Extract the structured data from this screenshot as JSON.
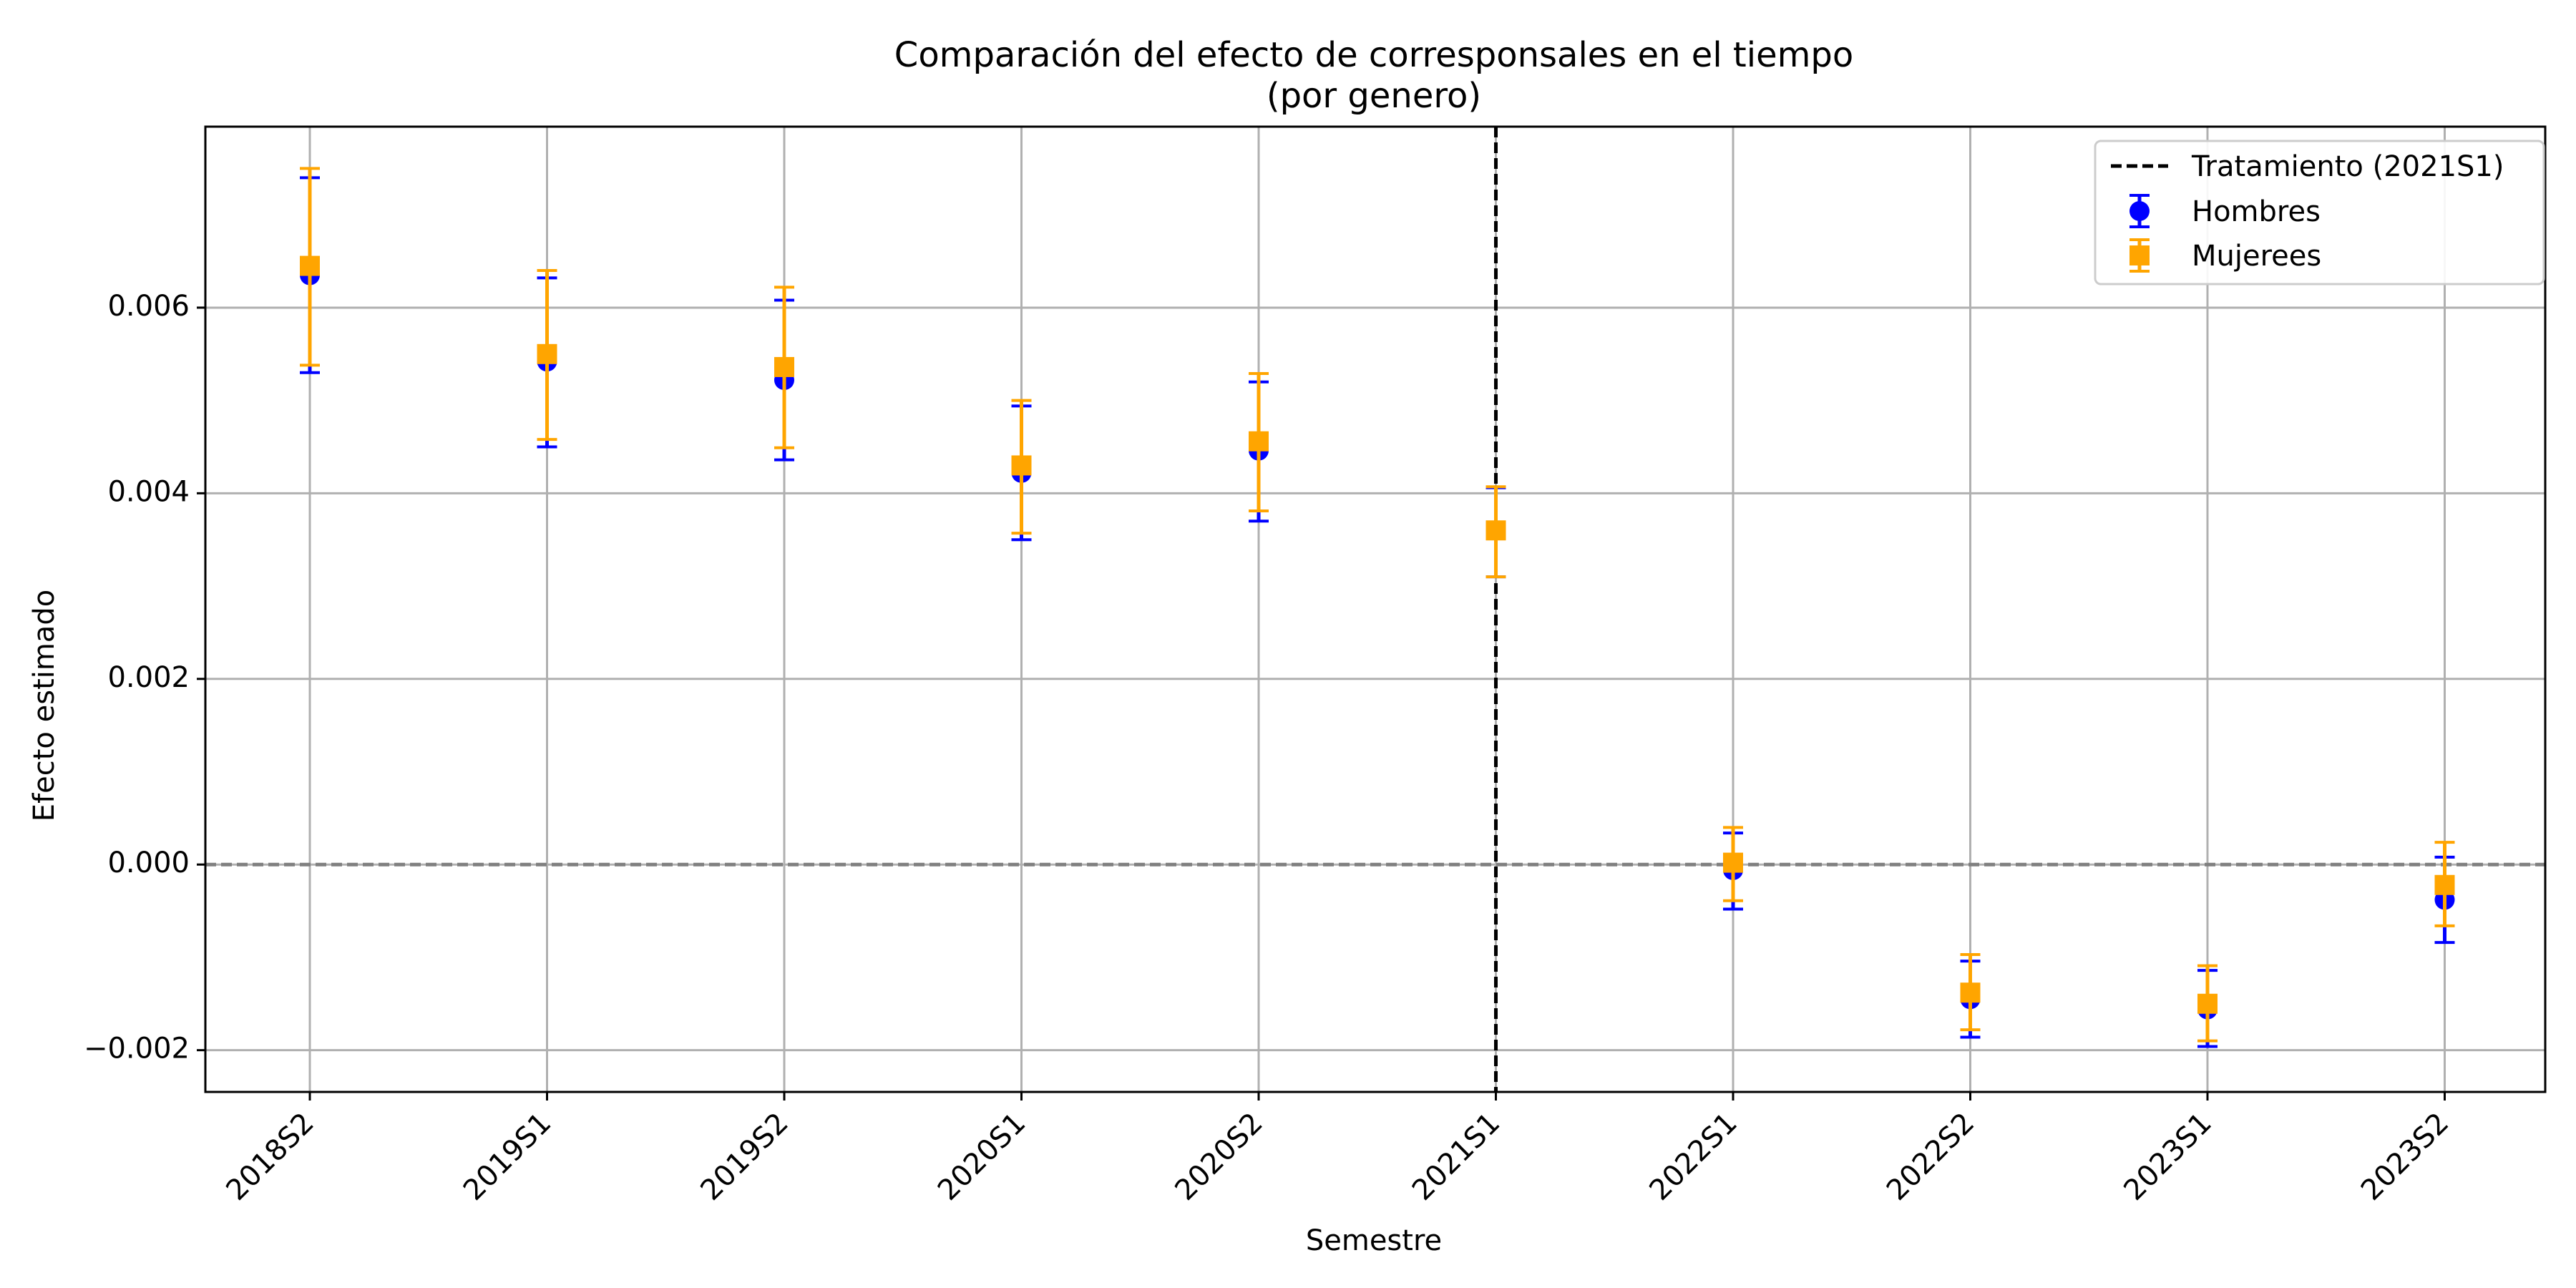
{
  "chart_data": {
    "type": "scatter",
    "title_line1": "Comparación del efecto de corresponsales en el tiempo",
    "title_line2": "(por genero)",
    "xlabel": "Semestre",
    "ylabel": "Efecto estimado",
    "categories": [
      "2018S2",
      "2019S1",
      "2019S2",
      "2020S1",
      "2020S2",
      "2021S1",
      "2022S1",
      "2022S2",
      "2023S1",
      "2023S2"
    ],
    "ylim": [
      -0.00245,
      0.00795
    ],
    "yticks": [
      -0.002,
      0.0,
      0.002,
      0.004,
      0.006
    ],
    "ytick_labels": [
      "−0.002",
      "0.000",
      "0.002",
      "0.004",
      "0.006"
    ],
    "grid": true,
    "legend_position": "top-right",
    "zero_line": 0.0,
    "treatment_line": {
      "category": "2021S1",
      "label": "Tratamiento (2021S1)",
      "color": "#000000"
    },
    "series": [
      {
        "name": "Hombres",
        "color": "#0000ff",
        "marker": "circle",
        "values": [
          0.00635,
          0.00542,
          0.00522,
          0.00422,
          0.00446,
          0.0036,
          -6e-05,
          -0.00145,
          -0.00156,
          -0.00038
        ],
        "lower": [
          0.0053,
          0.0045,
          0.00436,
          0.0035,
          0.0037,
          0.0031,
          -0.00048,
          -0.00186,
          -0.00196,
          -0.00084
        ],
        "upper": [
          0.0074,
          0.00632,
          0.00608,
          0.00494,
          0.0052,
          0.00406,
          0.00034,
          -0.00104,
          -0.00114,
          8e-05
        ]
      },
      {
        "name": "Mujerees",
        "color": "#ffa500",
        "marker": "square",
        "values": [
          0.00645,
          0.0055,
          0.00536,
          0.0043,
          0.00456,
          0.0036,
          2e-05,
          -0.00138,
          -0.0015,
          -0.00022
        ],
        "lower": [
          0.00538,
          0.00458,
          0.00449,
          0.00357,
          0.00381,
          0.0031,
          -0.00039,
          -0.00178,
          -0.0019,
          -0.00066
        ],
        "upper": [
          0.0075,
          0.0064,
          0.00622,
          0.005,
          0.00529,
          0.00407,
          0.0004,
          -0.00097,
          -0.00109,
          0.00024
        ]
      }
    ]
  }
}
